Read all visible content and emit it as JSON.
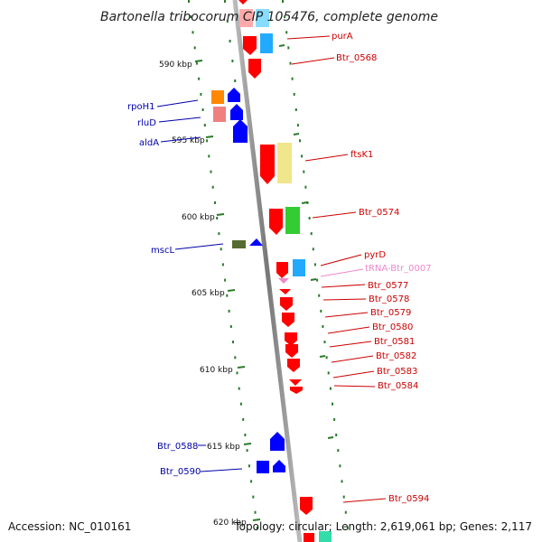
{
  "title": "Bartonella tribocorum CIP 105476, complete genome",
  "footer": {
    "accession": "Accession: NC_010161",
    "topology": "Topology: circular; Length: 2,619,061 bp; Genes: 2,117"
  },
  "ruler_labels": [
    {
      "text": "590 kbp",
      "kbp": 590
    },
    {
      "text": "595 kbp",
      "kbp": 595
    },
    {
      "text": "600 kbp",
      "kbp": 600
    },
    {
      "text": "605 kbp",
      "kbp": 605
    },
    {
      "text": "610 kbp",
      "kbp": 610
    },
    {
      "text": "615 kbp",
      "kbp": 615
    },
    {
      "text": "620 kbp",
      "kbp": 620
    }
  ],
  "forward_genes": [
    {
      "label": "purA",
      "color": "#ff0000"
    },
    {
      "label": "Btr_0568",
      "color": "#ff0000"
    },
    {
      "label": "ftsK1",
      "color": "#ff0000"
    },
    {
      "label": "Btr_0574",
      "color": "#ff0000"
    },
    {
      "label": "pyrD",
      "color": "#ff0000"
    },
    {
      "label": "tRNA-Btr_0007",
      "color": "#ee88cc"
    },
    {
      "label": "Btr_0577",
      "color": "#ff0000"
    },
    {
      "label": "Btr_0578",
      "color": "#ff0000"
    },
    {
      "label": "Btr_0579",
      "color": "#ff0000"
    },
    {
      "label": "Btr_0580",
      "color": "#ff0000"
    },
    {
      "label": "Btr_0581",
      "color": "#ff0000"
    },
    {
      "label": "Btr_0582",
      "color": "#ff0000"
    },
    {
      "label": "Btr_0583",
      "color": "#ff0000"
    },
    {
      "label": "Btr_0584",
      "color": "#ff0000"
    },
    {
      "label": "Btr_0594",
      "color": "#ff0000"
    }
  ],
  "reverse_genes": [
    {
      "label": "rpoH1",
      "color": "#0000ff"
    },
    {
      "label": "rluD",
      "color": "#0000ff"
    },
    {
      "label": "aldA",
      "color": "#0000ff"
    },
    {
      "label": "mscL",
      "color": "#0000ff"
    },
    {
      "label": "Btr_0588",
      "color": "#0000ff"
    },
    {
      "label": "Btr_0590",
      "color": "#0000ff"
    }
  ],
  "colors": {
    "forward_cds": "#ff0000",
    "reverse_cds": "#0000ff",
    "trna": "#ee88cc",
    "backbone": "#888888",
    "ticks": "#2a7a2a",
    "cog_blue": "#22aaff",
    "cog_yellow": "#f0e68c",
    "cog_green": "#33cc33",
    "cog_orange": "#ff8800",
    "cog_salmon": "#f08080",
    "cog_olive": "#556b2f"
  }
}
